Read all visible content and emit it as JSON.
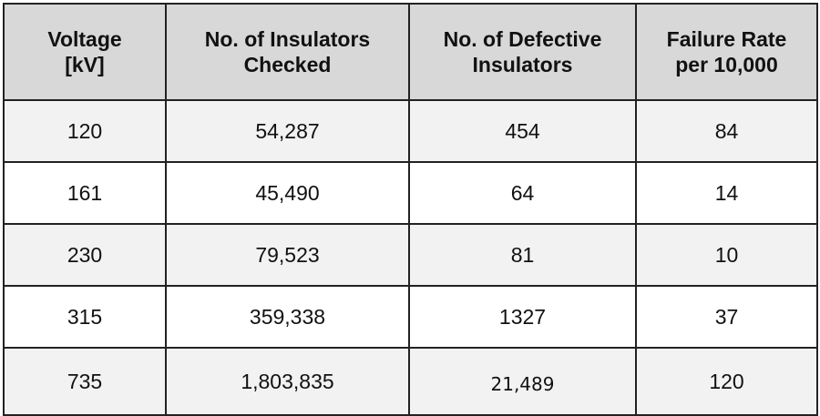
{
  "table": {
    "headers": [
      {
        "line1": "Voltage",
        "line2": "[kV]"
      },
      {
        "line1": "No. of Insulators",
        "line2": "Checked"
      },
      {
        "line1": "No. of Defective",
        "line2": "Insulators"
      },
      {
        "line1": "Failure Rate",
        "line2": "per 10,000"
      }
    ],
    "rows": [
      [
        "120",
        "54,287",
        "454",
        "84"
      ],
      [
        "161",
        "45,490",
        "64",
        "14"
      ],
      [
        "230",
        "79,523",
        "81",
        "10"
      ],
      [
        "315",
        "359,338",
        "1327",
        "37"
      ],
      [
        "735",
        "1,803,835",
        "21,489",
        "120"
      ]
    ]
  }
}
